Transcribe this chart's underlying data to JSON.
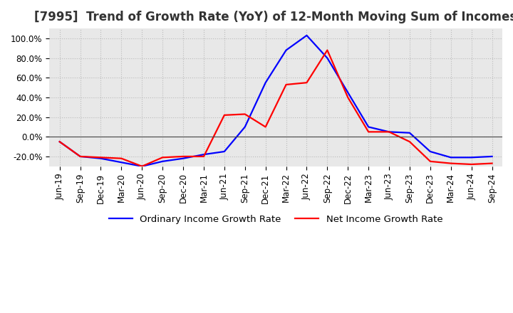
{
  "title": "[7995]  Trend of Growth Rate (YoY) of 12-Month Moving Sum of Incomes",
  "legend_labels": [
    "Ordinary Income Growth Rate",
    "Net Income Growth Rate"
  ],
  "line_colors": [
    "#0000ff",
    "#ff0000"
  ],
  "ylim": [
    -30,
    110
  ],
  "yticks": [
    -20.0,
    0.0,
    20.0,
    40.0,
    60.0,
    80.0,
    100.0
  ],
  "ytick_labels": [
    "-20.0%",
    "0.0%",
    "20.0%",
    "40.0%",
    "60.0%",
    "80.0%",
    "100.0%"
  ],
  "dates": [
    "Jun-19",
    "Sep-19",
    "Dec-19",
    "Mar-20",
    "Jun-20",
    "Sep-20",
    "Dec-20",
    "Mar-21",
    "Jun-21",
    "Sep-21",
    "Dec-21",
    "Mar-22",
    "Jun-22",
    "Sep-22",
    "Dec-22",
    "Mar-23",
    "Jun-23",
    "Sep-23",
    "Dec-23",
    "Mar-24",
    "Jun-24",
    "Sep-24"
  ],
  "ordinary_income": [
    -5.0,
    -20.0,
    -22.0,
    -26.0,
    -30.0,
    -25.0,
    -22.0,
    -18.0,
    -15.0,
    10.0,
    55.0,
    88.0,
    103.0,
    80.0,
    45.0,
    10.0,
    5.0,
    4.0,
    -15.0,
    -21.0,
    -21.0,
    -20.0
  ],
  "net_income": [
    -5.0,
    -20.0,
    -21.0,
    -22.0,
    -30.0,
    -21.0,
    -20.0,
    -20.0,
    22.0,
    23.0,
    10.0,
    53.0,
    55.0,
    88.0,
    40.0,
    5.0,
    5.0,
    -5.0,
    -25.0,
    -27.0,
    -28.0,
    -27.0
  ],
  "grid_color": "#bbbbbb",
  "plot_bg_color": "#e8e8e8",
  "fig_bg_color": "#ffffff",
  "title_fontsize": 12,
  "tick_fontsize": 8.5,
  "legend_fontsize": 9.5
}
